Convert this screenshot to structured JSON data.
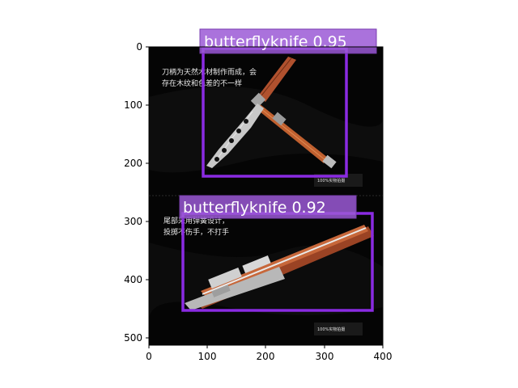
{
  "axes": {
    "x_ticks": [
      "0",
      "100",
      "200",
      "300",
      "400"
    ],
    "y_ticks": [
      "0",
      "100",
      "200",
      "300",
      "400",
      "500"
    ]
  },
  "photo": {
    "top_caption_line1": "刀柄为天然木材制作而成，会",
    "top_caption_line2": "存在木纹和色差的不一样",
    "bottom_caption_line1": "尾部采用弹簧设计，",
    "bottom_caption_line2": "投掷不伤手，不打手",
    "watermark_top": "100%实物拍摄",
    "watermark_bottom": "100%实物拍摄"
  },
  "detections": [
    {
      "label": "butterflyknife 0.95",
      "color": "#8a2be2"
    },
    {
      "label": "butterflyknife 0.92",
      "color": "#8a2be2"
    }
  ],
  "colors": {
    "box": "#8a2be2",
    "label_bg": "#9b59d6",
    "photo_bg": "#050505",
    "handle": "#b0512e",
    "blade": "#c8c8c8"
  }
}
